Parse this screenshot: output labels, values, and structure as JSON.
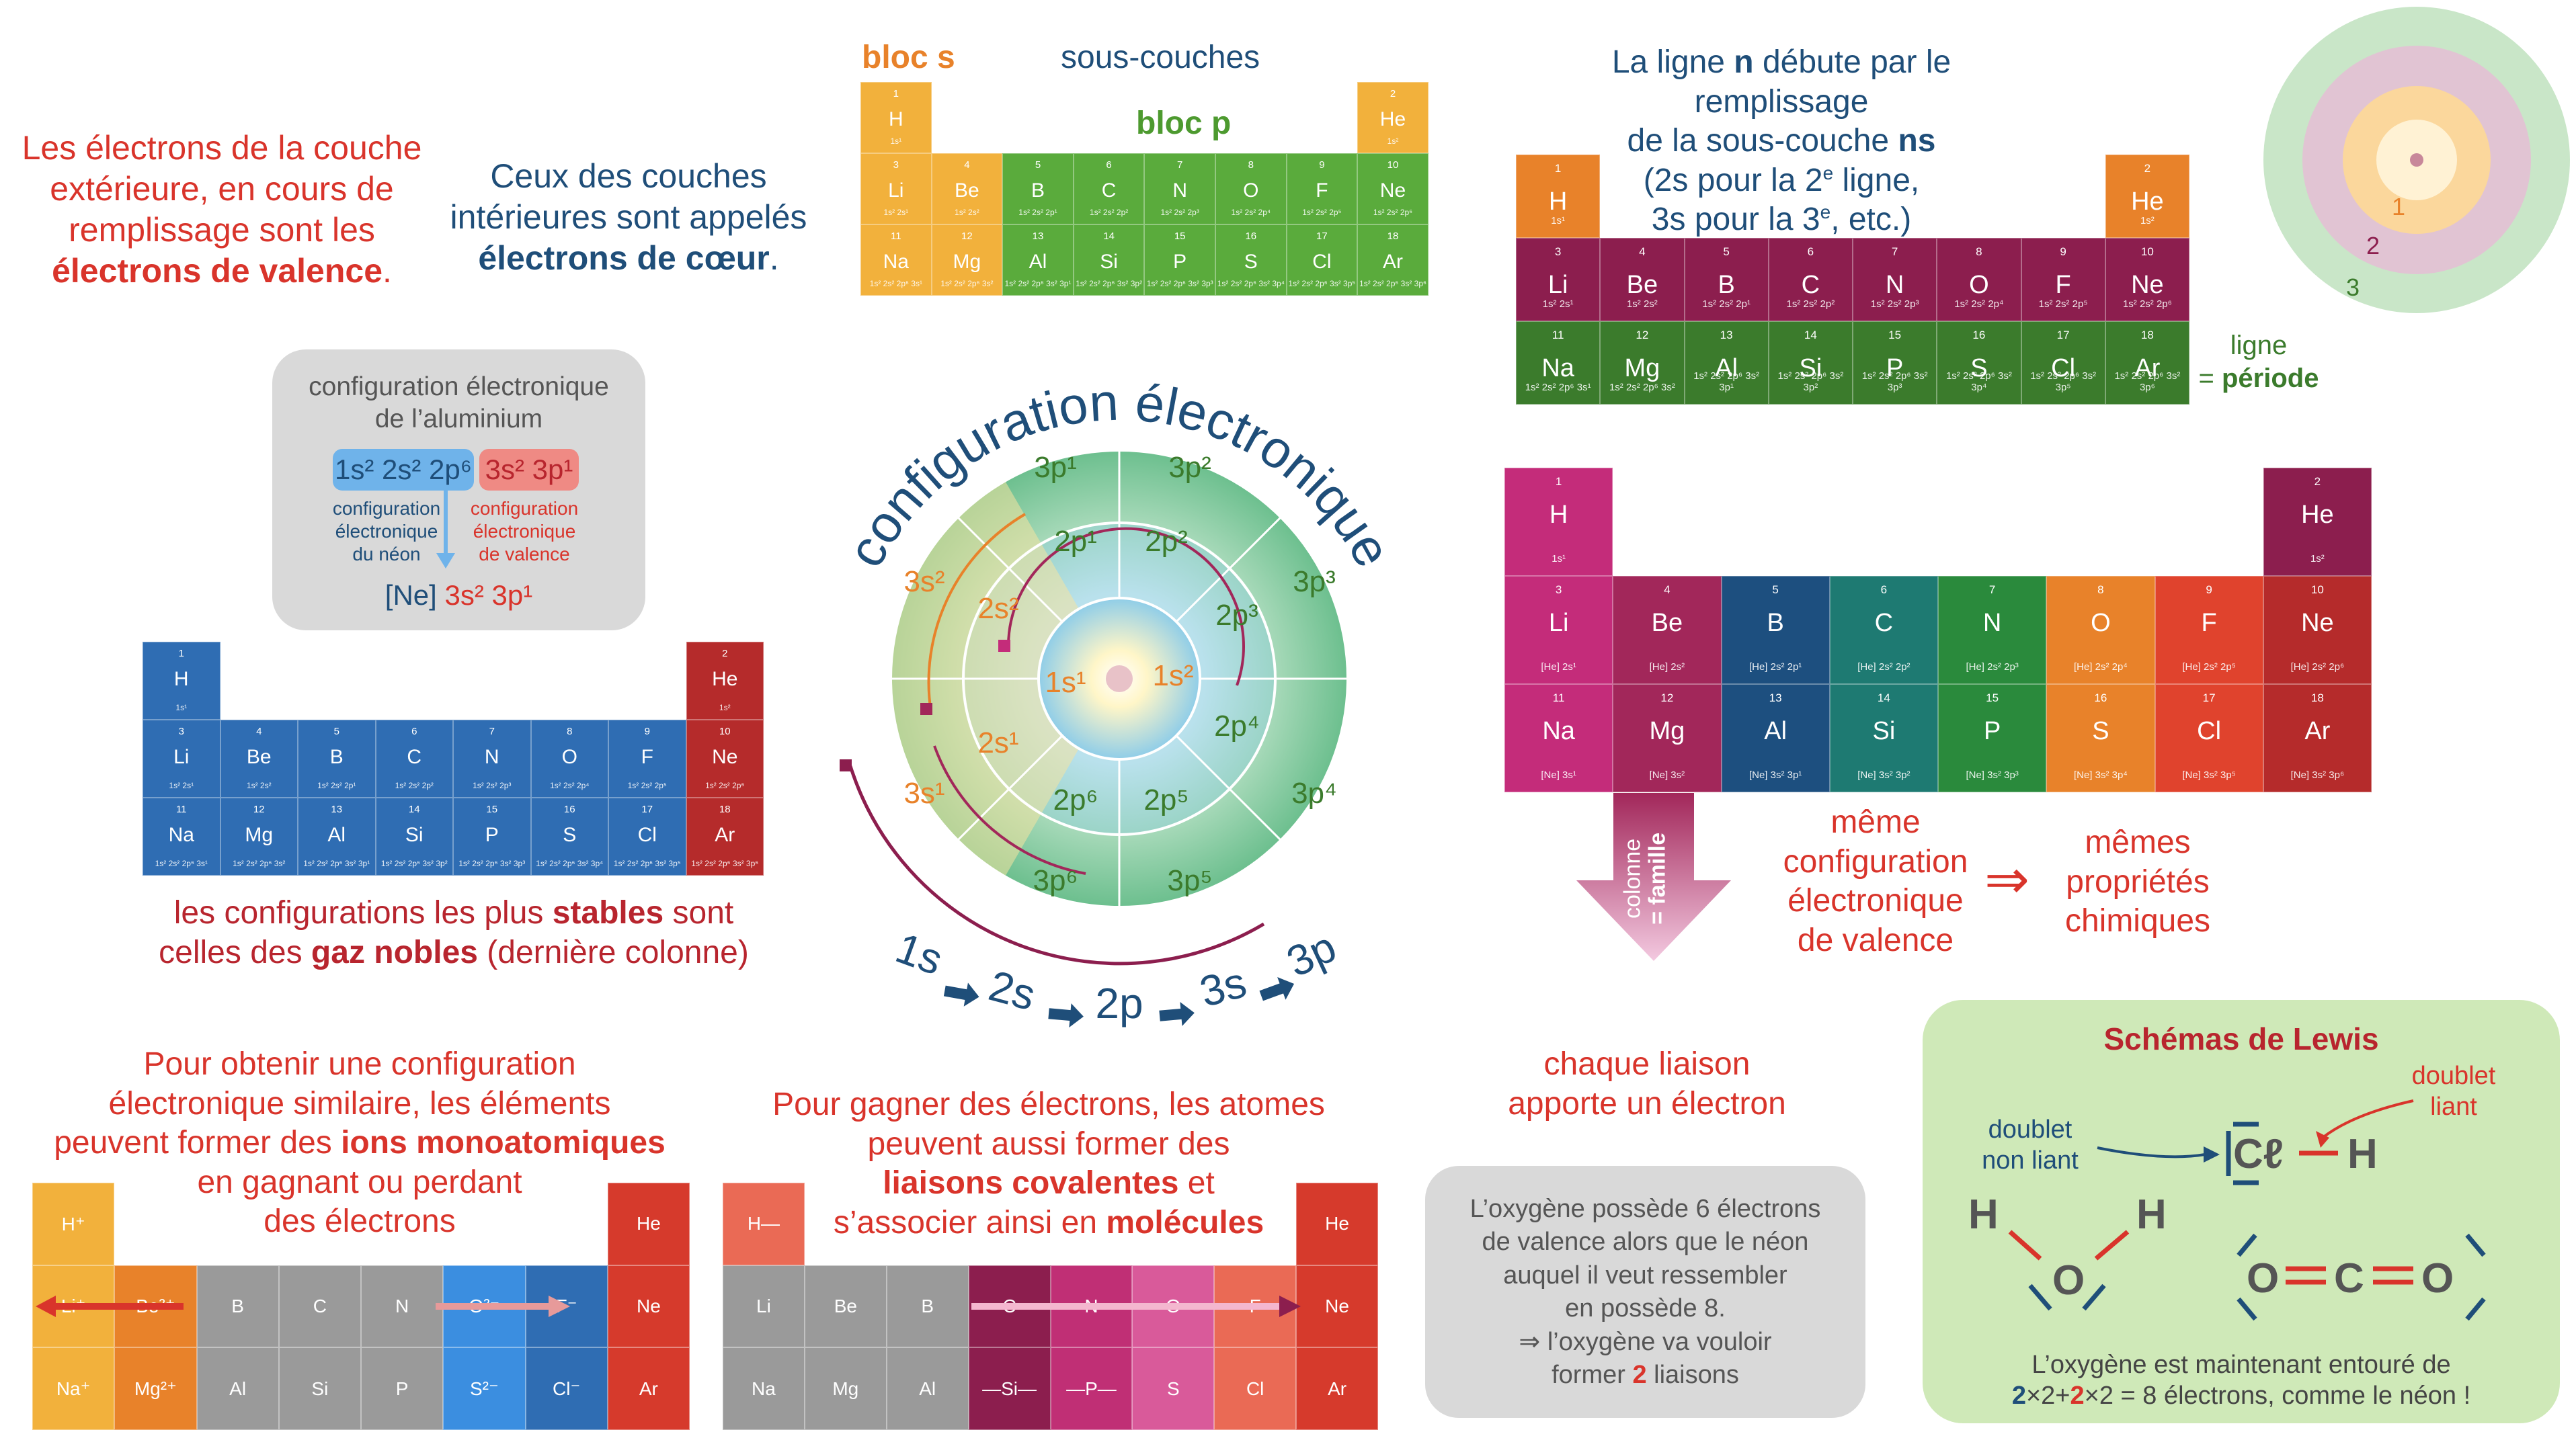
{
  "top_left": {
    "valence": [
      "Les électrons de la couche",
      "extérieure, en cours de",
      "remplissage sont les",
      "électrons de valence",
      "."
    ],
    "core": [
      "Ceux des couches",
      "intérieures sont appelés",
      "électrons de cœur",
      "."
    ]
  },
  "al_box": {
    "title": [
      "configuration électronique",
      "de l’aluminium"
    ],
    "neon_part": "1s² 2s² 2p⁶",
    "val_part": "3s² 3p¹",
    "neon_label": [
      "configuration",
      "électronique",
      "du néon"
    ],
    "val_label": [
      "configuration",
      "électronique",
      "de valence"
    ],
    "short_ne": "[Ne]",
    "short_val": "3s² 3p¹"
  },
  "stable": [
    "les configurations les plus ",
    "stables",
    " sont",
    "celles des ",
    "gaz nobles",
    " (dernière colonne)"
  ],
  "blocks": {
    "s": "bloc s",
    "sub": "sous-couches",
    "p": "bloc p"
  },
  "period_text": [
    "La ligne ",
    "n",
    " débute par le remplissage",
    "de la sous-couche ",
    "ns",
    "(2s pour la 2",
    "e",
    " ligne,",
    "3s pour la 3",
    "e",
    ", etc.)"
  ],
  "ligne": [
    "ligne",
    "= ",
    "période"
  ],
  "shells": [
    "1",
    "2",
    "3"
  ],
  "wheel": {
    "title": "configuration électronique",
    "inner": [
      "1s¹",
      "1s²"
    ],
    "mid": [
      "2s²",
      "2s¹",
      "2p¹",
      "2p²",
      "2p³",
      "2p⁴",
      "2p⁵",
      "2p⁶"
    ],
    "outer": [
      "3s²",
      "3s¹",
      "3p¹",
      "3p²",
      "3p³",
      "3p⁴",
      "3p⁵",
      "3p⁶"
    ],
    "order": [
      "1s",
      "2s",
      "2p",
      "3s",
      "3p"
    ]
  },
  "famille": {
    "col": [
      "colonne",
      "= famille"
    ],
    "same": [
      "même",
      "configuration",
      "électronique",
      "de valence"
    ],
    "arrow": "⇒",
    "props": [
      "mêmes",
      "propriétés",
      "chimiques"
    ]
  },
  "ions_text": [
    "Pour obtenir une configuration",
    "électronique similaire, les éléments",
    "peuvent former des ",
    "ions monoatomiques",
    "en gagnant ou perdant",
    "des électrons"
  ],
  "cov_text": [
    "Pour gagner des électrons, les atomes",
    "peuvent aussi former des",
    "liaisons covalentes",
    " et",
    "s’associer ainsi en ",
    "molécules"
  ],
  "liaison": [
    "chaque liaison",
    "apporte un électron"
  ],
  "oxy_box": [
    "L’oxygène possède 6 électrons",
    "de valence alors que le néon",
    "auquel il veut ressembler",
    "en possède 8.",
    "⇒ l’oxygène va vouloir",
    "former ",
    "2",
    " liaisons"
  ],
  "lewis": {
    "title": "Schémas de Lewis",
    "doublet_nl": [
      "doublet",
      "non liant"
    ],
    "doublet_l": [
      "doublet",
      "liant"
    ],
    "cl": "Cℓ",
    "h": "H",
    "o": "O",
    "c": "C",
    "bottom": [
      "L’oxygène est maintenant entouré de",
      "2",
      "×2+",
      "2",
      "×2 = 8 électrons, comme le néon !"
    ]
  },
  "ptable_small": {
    "row1": [
      {
        "z": "1",
        "s": "H",
        "c": "1s¹"
      },
      {
        "z": "2",
        "s": "He",
        "c": "1s²"
      }
    ],
    "row2": [
      {
        "z": "3",
        "s": "Li",
        "c": "1s² 2s¹"
      },
      {
        "z": "4",
        "s": "Be",
        "c": "1s² 2s²"
      },
      {
        "z": "5",
        "s": "B",
        "c": "1s² 2s² 2p¹"
      },
      {
        "z": "6",
        "s": "C",
        "c": "1s² 2s² 2p²"
      },
      {
        "z": "7",
        "s": "N",
        "c": "1s² 2s² 2p³"
      },
      {
        "z": "8",
        "s": "O",
        "c": "1s² 2s² 2p⁴"
      },
      {
        "z": "9",
        "s": "F",
        "c": "1s² 2s² 2p⁵"
      },
      {
        "z": "10",
        "s": "Ne",
        "c": "1s² 2s² 2p⁶"
      }
    ],
    "row3": [
      {
        "z": "11",
        "s": "Na",
        "c": "1s² 2s² 2p⁶ 3s¹"
      },
      {
        "z": "12",
        "s": "Mg",
        "c": "1s² 2s² 2p⁶ 3s²"
      },
      {
        "z": "13",
        "s": "Al",
        "c": "1s² 2s² 2p⁶ 3s² 3p¹"
      },
      {
        "z": "14",
        "s": "Si",
        "c": "1s² 2s² 2p⁶ 3s² 3p²"
      },
      {
        "z": "15",
        "s": "P",
        "c": "1s² 2s² 2p⁶ 3s² 3p³"
      },
      {
        "z": "16",
        "s": "S",
        "c": "1s² 2s² 2p⁶ 3s² 3p⁴"
      },
      {
        "z": "17",
        "s": "Cl",
        "c": "1s² 2s² 2p⁶ 3s² 3p⁵"
      },
      {
        "z": "18",
        "s": "Ar",
        "c": "1s² 2s² 2p⁶ 3s² 3p⁶"
      }
    ]
  },
  "ptable_core": {
    "row1": [
      {
        "z": "1",
        "s": "H",
        "c": "1s¹"
      },
      {
        "z": "2",
        "s": "He",
        "c": "1s²"
      }
    ],
    "row2": [
      {
        "z": "3",
        "s": "Li",
        "c": "[He] 2s¹"
      },
      {
        "z": "4",
        "s": "Be",
        "c": "[He] 2s²"
      },
      {
        "z": "5",
        "s": "B",
        "c": "[He] 2s² 2p¹"
      },
      {
        "z": "6",
        "s": "C",
        "c": "[He] 2s² 2p²"
      },
      {
        "z": "7",
        "s": "N",
        "c": "[He] 2s² 2p³"
      },
      {
        "z": "8",
        "s": "O",
        "c": "[He] 2s² 2p⁴"
      },
      {
        "z": "9",
        "s": "F",
        "c": "[He] 2s² 2p⁵"
      },
      {
        "z": "10",
        "s": "Ne",
        "c": "[He] 2s² 2p⁶"
      }
    ],
    "row3": [
      {
        "z": "11",
        "s": "Na",
        "c": "[Ne] 3s¹"
      },
      {
        "z": "12",
        "s": "Mg",
        "c": "[Ne] 3s²"
      },
      {
        "z": "13",
        "s": "Al",
        "c": "[Ne] 3s² 3p¹"
      },
      {
        "z": "14",
        "s": "Si",
        "c": "[Ne] 3s² 3p²"
      },
      {
        "z": "15",
        "s": "P",
        "c": "[Ne] 3s² 3p³"
      },
      {
        "z": "16",
        "s": "S",
        "c": "[Ne] 3s² 3p⁴"
      },
      {
        "z": "17",
        "s": "Cl",
        "c": "[Ne] 3s² 3p⁵"
      },
      {
        "z": "18",
        "s": "Ar",
        "c": "[Ne] 3s² 3p⁶"
      }
    ]
  },
  "ions_table": {
    "r1": [
      "H⁺",
      "He"
    ],
    "r2": [
      "Li⁺",
      "Be²⁺",
      "B",
      "C",
      "N",
      "O²⁻",
      "F⁻",
      "Ne"
    ],
    "r3": [
      "Na⁺",
      "Mg²⁺",
      "Al",
      "Si",
      "P",
      "S²⁻",
      "Cl⁻",
      "Ar"
    ]
  },
  "cov_table": {
    "r1": [
      "H—",
      "He"
    ],
    "r2": [
      "Li",
      "Be",
      "B",
      "—C—",
      "—N—",
      "O",
      "F",
      "Ne"
    ],
    "r3": [
      "Na",
      "Mg",
      "Al",
      "—Si—",
      "—P—",
      "S",
      "Cl",
      "Ar"
    ]
  },
  "colors": {
    "s_block": "#f2b13c",
    "p_block": "#5aab3c",
    "period_dark": "#8c1e4e",
    "period_green": "#3b7b2c",
    "orange": "#e8822a",
    "family": [
      "#c42c7a",
      "#a2275a",
      "#1d4f7f",
      "#1e7a72",
      "#2a8a3c",
      "#e8822a",
      "#e0432d",
      "#b52b2b"
    ],
    "noble_dark": "#8c1e4e",
    "gray_box": "#d9d9d9",
    "lewis_bg": "#cfe9b8"
  }
}
